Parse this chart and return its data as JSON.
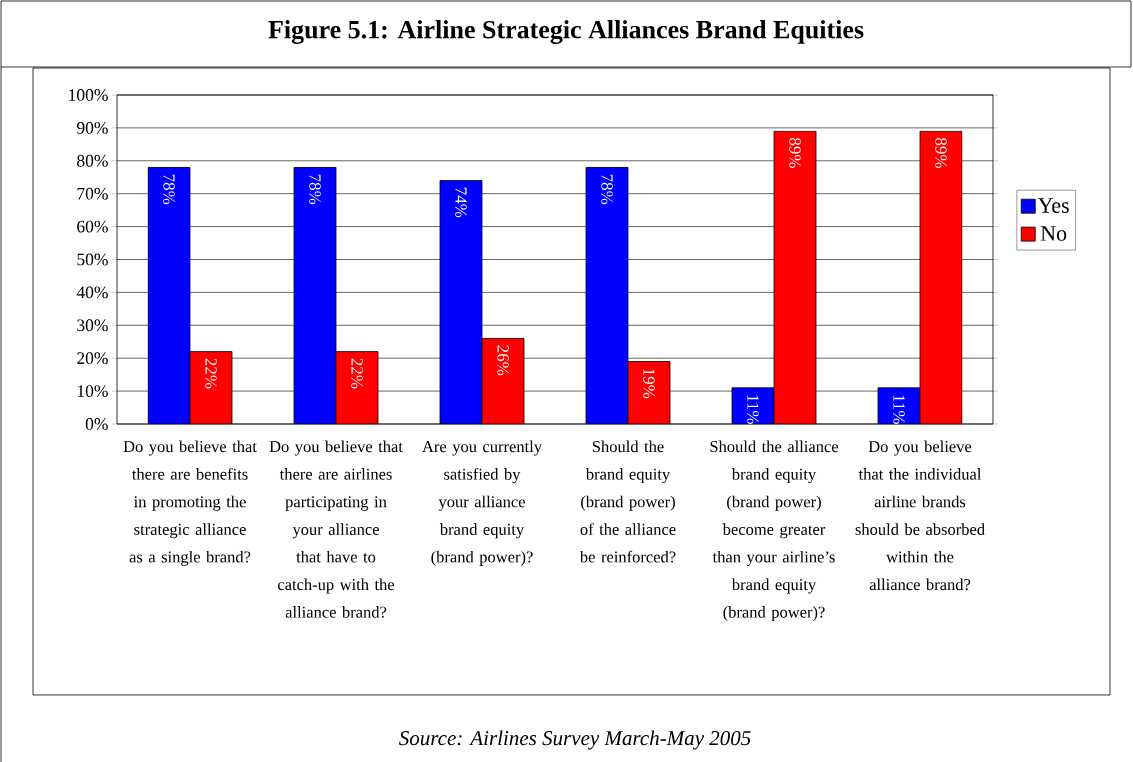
{
  "chart_data": {
    "type": "bar",
    "title": "Figure 5.1:  Airline Strategic Alliances Brand Equities",
    "categories": [
      "Do you believe that there are benefits in promoting the strategic alliance as a single brand?",
      "Do you believe that there are airlines participating in your alliance that have to catch-up with the alliance brand?",
      "Are you currently satisfied by your alliance brand equity (brand power)?",
      "Should the brand equity (brand power) of the alliance be reinforced?",
      "Should the alliance brand equity (brand power) become greater than your airline’s brand equity (brand power)?",
      "Do you believe that the individual airline brands should be absorbed within the alliance brand?"
    ],
    "series": [
      {
        "name": "Yes",
        "color": "#0000ff",
        "values": [
          78,
          78,
          74,
          78,
          11,
          11
        ],
        "value_labels": [
          "78%",
          "78%",
          "74%",
          "78%",
          "11%",
          "11%"
        ]
      },
      {
        "name": "No",
        "color": "#ff0000",
        "values": [
          22,
          22,
          26,
          19,
          89,
          89
        ],
        "value_labels": [
          "22%",
          "22%",
          "26%",
          "19%",
          "89%",
          "89%"
        ]
      }
    ],
    "ylim": [
      0,
      100
    ],
    "yticks": [
      {
        "value": 0,
        "label": "0%"
      },
      {
        "value": 10,
        "label": "10%"
      },
      {
        "value": 20,
        "label": "20%"
      },
      {
        "value": 30,
        "label": "30%"
      },
      {
        "value": 40,
        "label": "40%"
      },
      {
        "value": 50,
        "label": "50%"
      },
      {
        "value": 60,
        "label": "60%"
      },
      {
        "value": 70,
        "label": "70%"
      },
      {
        "value": 80,
        "label": "80%"
      },
      {
        "value": 90,
        "label": "90%"
      },
      {
        "value": 100,
        "label": "100%"
      }
    ],
    "grid": "y",
    "legend": "right",
    "annotations": [
      "Source: Airlines Survey March-May 2005"
    ]
  }
}
